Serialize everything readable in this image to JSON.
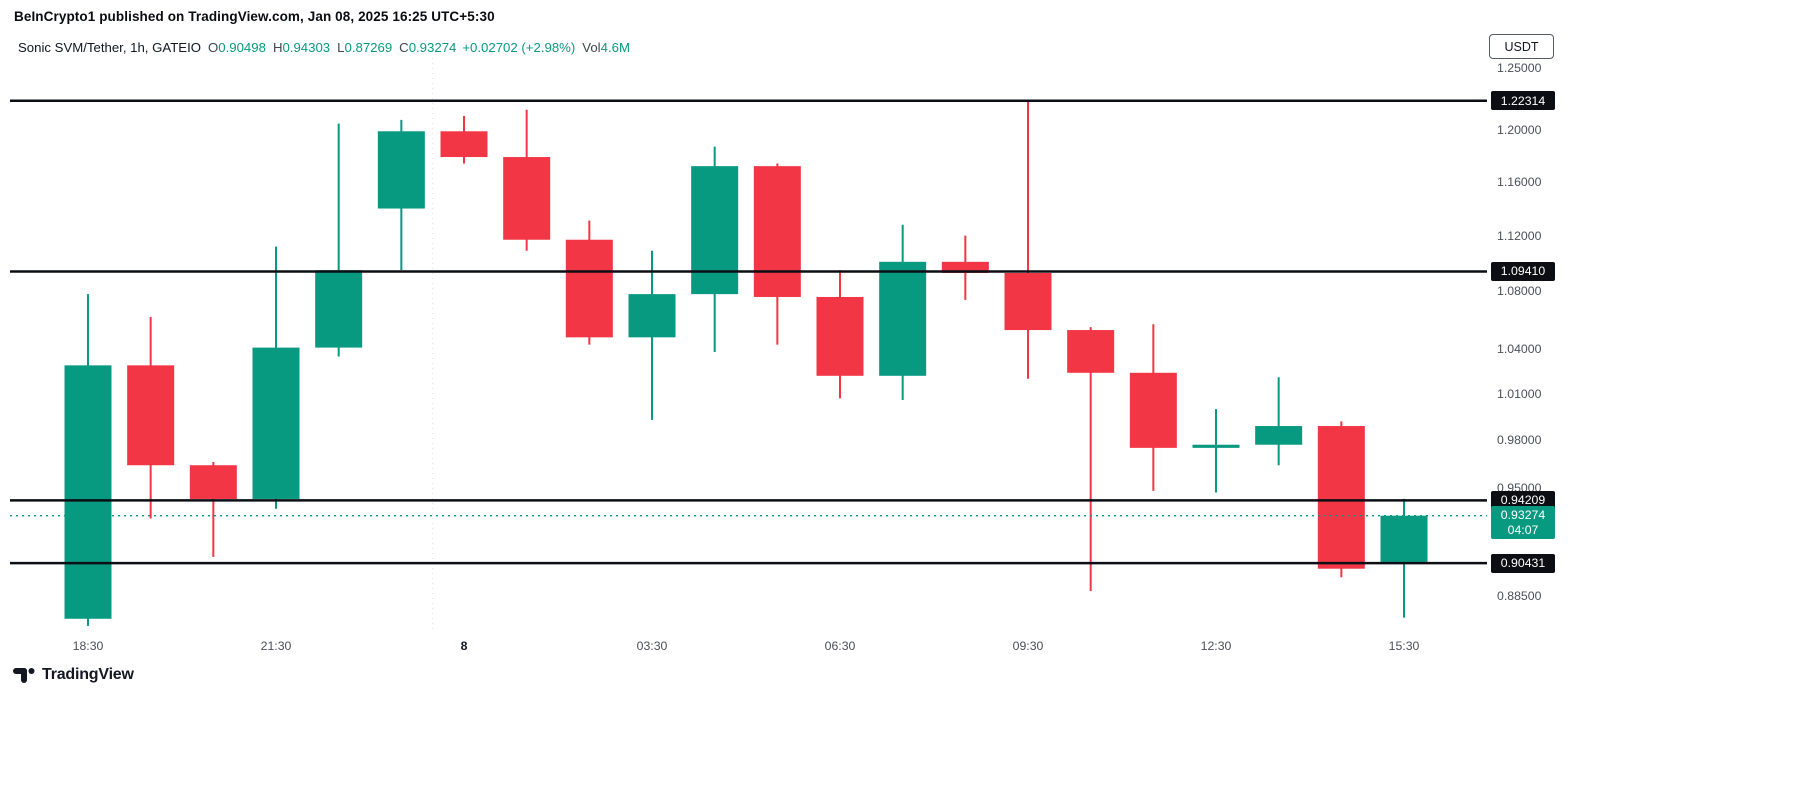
{
  "header": {
    "attribution": "BeInCrypto1 published on TradingView.com, Jan 08, 2025 16:25 UTC+5:30",
    "currency_button": "USDT"
  },
  "legend": {
    "title": "Sonic SVM/Tether, 1h, GATEIO",
    "ohlc": [
      {
        "label": "O",
        "value": "0.90498"
      },
      {
        "label": "H",
        "value": "0.94303"
      },
      {
        "label": "L",
        "value": "0.87269"
      },
      {
        "label": "C",
        "value": "0.93274"
      }
    ],
    "change": "+0.02702 (+2.98%)",
    "volume_label": "Vol",
    "volume_value": "4.6M"
  },
  "colors": {
    "up": "#089981",
    "down": "#f23645",
    "level_line": "#0b0e14",
    "axis_text": "#4c4f58",
    "text": "#131722",
    "current_badge": "#089981"
  },
  "footer": {
    "logo_text": "TradingView"
  },
  "chart_data": {
    "type": "candlestick",
    "symbol": "Sonic SVM/Tether",
    "interval": "1h",
    "exchange": "GATEIO",
    "scale": "log",
    "grid": false,
    "y_range": [
      0.8645,
      1.2578
    ],
    "y_axis_ticks": [
      {
        "price": 1.25,
        "label": "1.25000"
      },
      {
        "price": 1.2,
        "label": "1.20000"
      },
      {
        "price": 1.16,
        "label": "1.16000"
      },
      {
        "price": 1.12,
        "label": "1.12000"
      },
      {
        "price": 1.08,
        "label": "1.08000"
      },
      {
        "price": 1.04,
        "label": "1.04000"
      },
      {
        "price": 1.01,
        "label": "1.01000"
      },
      {
        "price": 0.98,
        "label": "0.98000"
      },
      {
        "price": 0.95,
        "label": "0.95000"
      },
      {
        "price": 0.885,
        "label": "0.88500"
      }
    ],
    "x_axis_ticks": [
      {
        "index": 0,
        "label": "18:30",
        "major": false
      },
      {
        "index": 3,
        "label": "21:30",
        "major": false
      },
      {
        "index": 6,
        "label": "8",
        "major": true
      },
      {
        "index": 9,
        "label": "03:30",
        "major": false
      },
      {
        "index": 12,
        "label": "06:30",
        "major": false
      },
      {
        "index": 15,
        "label": "09:30",
        "major": false
      },
      {
        "index": 18,
        "label": "12:30",
        "major": false
      },
      {
        "index": 21,
        "label": "15:30",
        "major": false
      }
    ],
    "levels": [
      {
        "price": 1.22314,
        "label": "1.22314"
      },
      {
        "price": 1.0941,
        "label": "1.09410"
      },
      {
        "price": 0.94209,
        "label": "0.94209"
      },
      {
        "price": 0.90431,
        "label": "0.90431"
      }
    ],
    "current_price": {
      "price": 0.93274,
      "label": "0.93274",
      "countdown": "04:07"
    },
    "candles": [
      {
        "time": "18:30",
        "o": 0.872,
        "h": 1.078,
        "l": 0.868,
        "c": 1.029
      },
      {
        "time": "19:30",
        "o": 1.029,
        "h": 1.062,
        "l": 0.931,
        "c": 0.964
      },
      {
        "time": "20:30",
        "o": 0.964,
        "h": 0.966,
        "l": 0.908,
        "c": 0.943
      },
      {
        "time": "21:30",
        "o": 0.943,
        "h": 1.112,
        "l": 0.937,
        "c": 1.041
      },
      {
        "time": "22:30",
        "o": 1.041,
        "h": 1.205,
        "l": 1.035,
        "c": 1.095
      },
      {
        "time": "23:30",
        "o": 1.14,
        "h": 1.208,
        "l": 1.095,
        "c": 1.199
      },
      {
        "time": "00:30",
        "o": 1.199,
        "h": 1.211,
        "l": 1.174,
        "c": 1.179
      },
      {
        "time": "01:30",
        "o": 1.179,
        "h": 1.216,
        "l": 1.109,
        "c": 1.117
      },
      {
        "time": "02:30",
        "o": 1.117,
        "h": 1.131,
        "l": 1.043,
        "c": 1.048
      },
      {
        "time": "03:30",
        "o": 1.048,
        "h": 1.109,
        "l": 0.993,
        "c": 1.078
      },
      {
        "time": "04:30",
        "o": 1.078,
        "h": 1.187,
        "l": 1.038,
        "c": 1.172
      },
      {
        "time": "05:30",
        "o": 1.172,
        "h": 1.174,
        "l": 1.043,
        "c": 1.076
      },
      {
        "time": "06:30",
        "o": 1.076,
        "h": 1.095,
        "l": 1.007,
        "c": 1.022
      },
      {
        "time": "07:30",
        "o": 1.022,
        "h": 1.128,
        "l": 1.006,
        "c": 1.101
      },
      {
        "time": "08:30",
        "o": 1.101,
        "h": 1.12,
        "l": 1.074,
        "c": 1.093
      },
      {
        "time": "09:30",
        "o": 1.093,
        "h": 1.22314,
        "l": 1.02,
        "c": 1.053
      },
      {
        "time": "10:30",
        "o": 1.053,
        "h": 1.055,
        "l": 0.888,
        "c": 1.024
      },
      {
        "time": "11:30",
        "o": 1.024,
        "h": 1.057,
        "l": 0.948,
        "c": 0.975
      },
      {
        "time": "12:30",
        "o": 0.975,
        "h": 1.0,
        "l": 0.947,
        "c": 0.977
      },
      {
        "time": "13:30",
        "o": 0.977,
        "h": 1.021,
        "l": 0.964,
        "c": 0.989
      },
      {
        "time": "14:30",
        "o": 0.989,
        "h": 0.992,
        "l": 0.896,
        "c": 0.901
      },
      {
        "time": "15:30",
        "o": 0.90498,
        "h": 0.94303,
        "l": 0.87269,
        "c": 0.93274
      }
    ]
  }
}
